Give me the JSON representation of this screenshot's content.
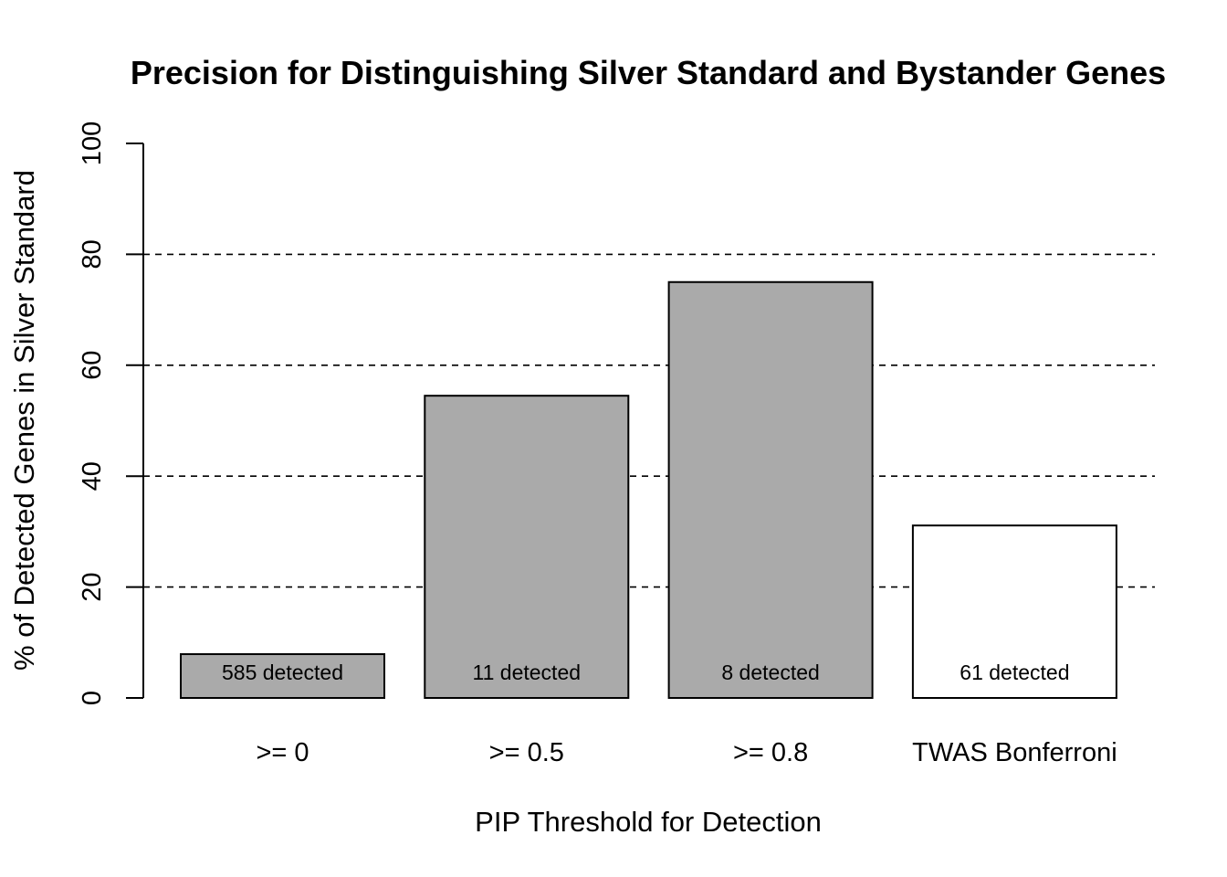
{
  "chart_data": {
    "type": "bar",
    "title": "Precision for Distinguishing Silver Standard and Bystander Genes",
    "xlabel": "PIP Threshold for Detection",
    "ylabel": "% of Detected Genes in Silver Standard",
    "categories": [
      ">= 0",
      ">= 0.5",
      ">= 0.8",
      "TWAS Bonferroni"
    ],
    "values": [
      7.9,
      54.5,
      75.0,
      31.1
    ],
    "bar_labels": [
      "585 detected",
      "11 detected",
      "8 detected",
      "61 detected"
    ],
    "bar_colors": [
      "#aaaaaa",
      "#aaaaaa",
      "#aaaaaa",
      "#ffffff"
    ],
    "ylim": [
      0,
      100
    ],
    "yticks": [
      0,
      20,
      40,
      60,
      80,
      100
    ],
    "gridlines": [
      20,
      40,
      60,
      80
    ],
    "grid": "horizontal dashed",
    "legend": "none"
  }
}
